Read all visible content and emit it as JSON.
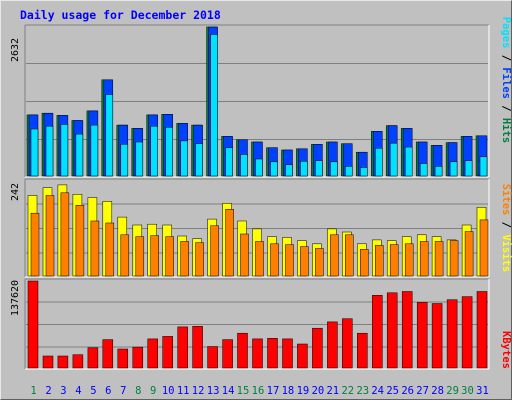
{
  "chart_data": {
    "type": "bar",
    "title": "Daily usage for December 2018",
    "days": [
      "1",
      "2",
      "3",
      "4",
      "5",
      "6",
      "7",
      "8",
      "9",
      "10",
      "11",
      "12",
      "13",
      "14",
      "15",
      "16",
      "17",
      "18",
      "19",
      "20",
      "21",
      "22",
      "23",
      "24",
      "25",
      "26",
      "27",
      "28",
      "29",
      "30",
      "31"
    ],
    "weekend_days": [
      1,
      8,
      9,
      15,
      16,
      22,
      23,
      29,
      30
    ],
    "panels": {
      "top": {
        "ymax": 2632,
        "ymax_label": "2632",
        "legend": [
          "Pages",
          "Files",
          "Hits"
        ],
        "series": [
          {
            "name": "Hits",
            "color": "#008040",
            "values": [
              1080,
              1110,
              1070,
              980,
              1150,
              1700,
              900,
              840,
              1080,
              1090,
              930,
              900,
              2632,
              700,
              640,
              600,
              500,
              460,
              480,
              560,
              600,
              570,
              420,
              790,
              890,
              840,
              600,
              540,
              590,
              700,
              710
            ]
          },
          {
            "name": "Files",
            "color": "#0040ff",
            "values": [
              1080,
              1110,
              1070,
              980,
              1150,
              1700,
              900,
              840,
              1080,
              1090,
              930,
              900,
              2632,
              700,
              640,
              600,
              500,
              460,
              480,
              560,
              600,
              570,
              420,
              790,
              890,
              840,
              600,
              540,
              590,
              700,
              710
            ]
          },
          {
            "name": "Pages",
            "color": "#00e0ff",
            "values": [
              830,
              880,
              910,
              740,
              900,
              1440,
              560,
              600,
              880,
              860,
              620,
              570,
              2500,
              500,
              380,
              300,
              250,
              200,
              260,
              270,
              250,
              170,
              150,
              490,
              580,
              510,
              220,
              170,
              250,
              270,
              340
            ]
          }
        ]
      },
      "middle": {
        "ymax": 242,
        "ymax_label": "242",
        "legend": [
          "Sites",
          "Visits"
        ],
        "series": [
          {
            "name": "Visits",
            "color": "#ffff00",
            "values": [
              205,
              225,
              232,
              208,
              200,
              190,
              150,
              130,
              132,
              130,
              102,
              95,
              145,
              185,
              140,
              120,
              100,
              98,
              90,
              82,
              120,
              112,
              82,
              92,
              90,
              100,
              105,
              100,
              92,
              130,
              175
            ]
          },
          {
            "name": "Sites",
            "color": "#ff8000",
            "values": [
              160,
              205,
              212,
              180,
              140,
              135,
              105,
              100,
              103,
              100,
              88,
              85,
              128,
              170,
              107,
              88,
              82,
              80,
              75,
              70,
              105,
              105,
              68,
              78,
              80,
              82,
              88,
              88,
              90,
              113,
              143
            ]
          }
        ]
      },
      "bottom": {
        "ymax": 137620,
        "ymax_label": "137620",
        "legend": [
          "KBytes"
        ],
        "series": [
          {
            "name": "KBytes",
            "color": "#ff0000",
            "values": [
              137620,
              19000,
              19000,
              21000,
              32000,
              45000,
              30000,
              33000,
              46000,
              50000,
              65000,
              66000,
              34000,
              45000,
              55000,
              46000,
              47000,
              46000,
              38000,
              63000,
              73000,
              78000,
              55000,
              115000,
              119000,
              121000,
              104000,
              102000,
              108000,
              113000,
              121000
            ]
          }
        ]
      }
    },
    "colors": {
      "title": "#0000ff",
      "panel_bg": "#c0c0c0",
      "gridline": "#808080",
      "weekday_label": "#0000ff",
      "weekend_label": "#008040",
      "axis_label": "#000000"
    }
  }
}
